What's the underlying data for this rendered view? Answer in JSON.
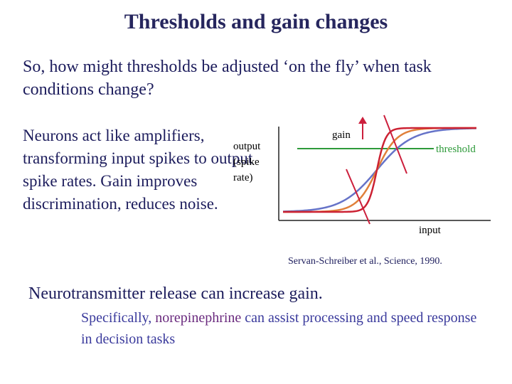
{
  "title": "Thresholds and gain changes",
  "question": "So, how might thresholds be adjusted ‘on the fly’ when task conditions change?",
  "neurons_text": "Neurons act like amplifiers, transforming input spikes to output spike rates. Gain improves discrimination, reduces noise.",
  "plot": {
    "ylabel_lines": [
      "output",
      "(spike",
      "rate)"
    ],
    "xlabel": "input",
    "gain_label": "gain",
    "threshold_label": "threshold",
    "colors": {
      "axes": "#222222",
      "threshold": "#2e9a3a",
      "gain_lines": "#cc1f3c",
      "curve_low": "#6673c8",
      "curve_mid": "#e0803a",
      "curve_high": "#cc2233"
    }
  },
  "citation": "Servan-Schreiber et al., Science, 1990.",
  "neurotransmitter": "Neurotransmitter release can increase gain.",
  "specifically": {
    "before": "Specifically, ",
    "highlight": "norepinephrine",
    "after": " can assist processing and speed response in decision tasks"
  }
}
